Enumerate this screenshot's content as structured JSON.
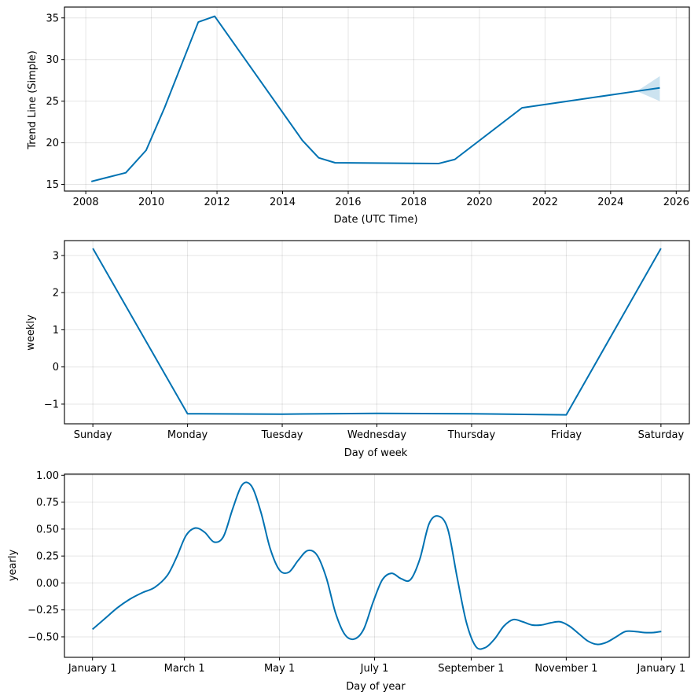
{
  "colors": {
    "line": "#0072B2",
    "band": "#0072B2",
    "grid": "#e6e6e6"
  },
  "chart_data": [
    {
      "type": "line",
      "name": "trend",
      "xlabel": "Date (UTC Time)",
      "ylabel": "Trend Line (Simple)",
      "xlim": [
        2007.35,
        2026.4
      ],
      "ylim": [
        14.2,
        36.3
      ],
      "xticks": [
        2008,
        2010,
        2012,
        2014,
        2016,
        2018,
        2020,
        2022,
        2024,
        2026
      ],
      "xtick_labels": [
        "2008",
        "2010",
        "2012",
        "2014",
        "2016",
        "2018",
        "2020",
        "2022",
        "2024",
        "2026"
      ],
      "yticks": [
        15,
        20,
        25,
        30,
        35
      ],
      "ytick_labels": [
        "15",
        "20",
        "25",
        "30",
        "35"
      ],
      "grid": true,
      "x": [
        2008.17,
        2009.22,
        2009.84,
        2010.4,
        2011.43,
        2011.93,
        2014.6,
        2015.1,
        2015.6,
        2018.75,
        2019.25,
        2021.3,
        2024.8,
        2025.5
      ],
      "y": [
        15.35,
        16.4,
        19.1,
        24.2,
        34.5,
        35.2,
        20.3,
        18.2,
        17.6,
        17.5,
        18.0,
        24.2,
        26.2,
        26.6
      ],
      "uncertainty": {
        "x": [
          2024.8,
          2025.5
        ],
        "lower": [
          26.2,
          25.0
        ],
        "upper": [
          26.2,
          28.0
        ]
      }
    },
    {
      "type": "line",
      "name": "weekly",
      "xlabel": "Day of week",
      "ylabel": "weekly",
      "xlim": [
        -0.3,
        6.3
      ],
      "ylim": [
        -1.53,
        3.4
      ],
      "categories": [
        "Sunday",
        "Monday",
        "Tuesday",
        "Wednesday",
        "Thursday",
        "Friday",
        "Saturday"
      ],
      "yticks": [
        -1,
        0,
        1,
        2,
        3
      ],
      "ytick_labels": [
        "−1",
        "0",
        "1",
        "2",
        "3"
      ],
      "grid": true,
      "values": [
        3.19,
        -1.26,
        -1.27,
        -1.25,
        -1.26,
        -1.29,
        3.19
      ]
    },
    {
      "type": "line",
      "name": "yearly",
      "xlabel": "Day of year",
      "ylabel": "yearly",
      "xlim": [
        -18,
        383
      ],
      "ylim": [
        -0.69,
        1.01
      ],
      "xticks": [
        0,
        59,
        120,
        181,
        243,
        304,
        365
      ],
      "xtick_labels": [
        "January 1",
        "March 1",
        "May 1",
        "July 1",
        "September 1",
        "November 1",
        "January 1"
      ],
      "yticks": [
        -0.5,
        -0.25,
        0.0,
        0.25,
        0.5,
        0.75,
        1.0
      ],
      "ytick_labels": [
        "−0.50",
        "−0.25",
        "0.00",
        "0.25",
        "0.50",
        "0.75",
        "1.00"
      ],
      "grid": true,
      "x": [
        0,
        8,
        16,
        24,
        32,
        40,
        48,
        54,
        60,
        66,
        72,
        78,
        84,
        90,
        96,
        102,
        108,
        114,
        120,
        126,
        132,
        138,
        144,
        150,
        156,
        162,
        168,
        174,
        180,
        186,
        192,
        198,
        204,
        210,
        216,
        222,
        228,
        234,
        240,
        246,
        252,
        258,
        264,
        270,
        276,
        282,
        288,
        294,
        300,
        306,
        312,
        318,
        324,
        330,
        336,
        342,
        348,
        354,
        360,
        365
      ],
      "y": [
        -0.43,
        -0.33,
        -0.23,
        -0.15,
        -0.09,
        -0.04,
        0.07,
        0.24,
        0.44,
        0.51,
        0.47,
        0.38,
        0.43,
        0.69,
        0.91,
        0.9,
        0.66,
        0.32,
        0.12,
        0.1,
        0.21,
        0.3,
        0.26,
        0.05,
        -0.28,
        -0.48,
        -0.52,
        -0.43,
        -0.18,
        0.03,
        0.09,
        0.04,
        0.03,
        0.22,
        0.55,
        0.62,
        0.5,
        0.05,
        -0.37,
        -0.59,
        -0.6,
        -0.52,
        -0.4,
        -0.34,
        -0.36,
        -0.39,
        -0.39,
        -0.37,
        -0.36,
        -0.4,
        -0.47,
        -0.54,
        -0.57,
        -0.55,
        -0.5,
        -0.45,
        -0.45,
        -0.46,
        -0.46,
        -0.45
      ]
    }
  ]
}
